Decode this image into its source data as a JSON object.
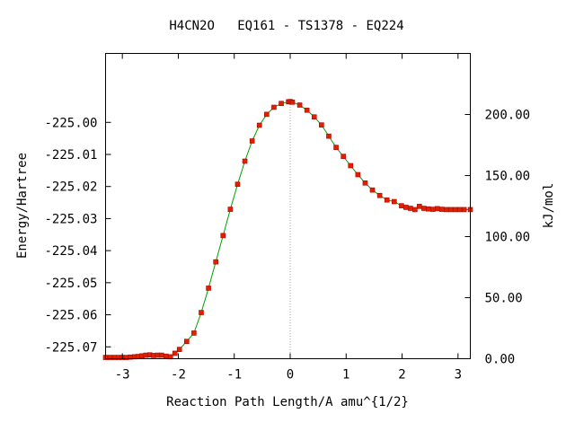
{
  "chart_data": {
    "type": "line",
    "title": "H4CN2O   EQ161 - TS1378 - EQ224",
    "xlabel": "Reaction Path Length/A amu^{1/2}",
    "ylabel": "Energy/Hartree",
    "y2label": "kJ/mol",
    "xlim": [
      -3.3,
      3.22
    ],
    "ylim": [
      -225.0737,
      -224.9785
    ],
    "y2lim": [
      0,
      250
    ],
    "xticks": [
      -3,
      -2,
      -1,
      0,
      1,
      2,
      3
    ],
    "xtick_labels": [
      "-3",
      "-2",
      "-1",
      "0",
      "1",
      "2",
      "3"
    ],
    "yticks": [
      -225.0,
      -225.01,
      -225.02,
      -225.03,
      -225.04,
      -225.05,
      -225.06,
      -225.07
    ],
    "ytick_labels": [
      "-225.00",
      "-225.01",
      "-225.02",
      "-225.03",
      "-225.04",
      "-225.05",
      "-225.06",
      "-225.07"
    ],
    "y2ticks": [
      200,
      150,
      100,
      50,
      0
    ],
    "y2tick_labels": [
      "200.00",
      "150.00",
      "100.00",
      "50.00",
      "0.00"
    ],
    "ts_marker_x": 0,
    "grid": false,
    "legend": "none",
    "colors": {
      "line": "#00a000",
      "marker_fill": "#dd2200",
      "marker_edge": "#b00000",
      "ts_line": "#a0a0a0",
      "frame": "#000000"
    },
    "series": [
      {
        "x": [
          -3.3,
          -3.22,
          -3.14,
          -3.07,
          -3.0,
          -2.93,
          -2.86,
          -2.78,
          -2.72,
          -2.65,
          -2.58,
          -2.51,
          -2.44,
          -2.37,
          -2.3,
          -2.22,
          -2.14,
          -2.06,
          -1.98,
          -1.85,
          -1.72,
          -1.59,
          -1.46,
          -1.33,
          -1.2,
          -1.07,
          -0.94,
          -0.81,
          -0.68,
          -0.55,
          -0.42,
          -0.29,
          -0.16,
          -0.03,
          0.0,
          0.04,
          0.17,
          0.3,
          0.43,
          0.56,
          0.69,
          0.82,
          0.95,
          1.08,
          1.21,
          1.34,
          1.47,
          1.6,
          1.73,
          1.86,
          1.99,
          2.07,
          2.15,
          2.23,
          2.31,
          2.39,
          2.47,
          2.55,
          2.63,
          2.71,
          2.79,
          2.87,
          2.95,
          3.03,
          3.11,
          3.22
        ],
        "y": [
          -225.0733,
          -225.0733,
          -225.0733,
          -225.0733,
          -225.0733,
          -225.0733,
          -225.0732,
          -225.0731,
          -225.073,
          -225.0728,
          -225.0726,
          -225.0725,
          -225.0727,
          -225.0726,
          -225.0726,
          -225.0729,
          -225.0731,
          -225.072,
          -225.0708,
          -225.0683,
          -225.0657,
          -225.0593,
          -225.0517,
          -225.0435,
          -225.0353,
          -225.0271,
          -225.0193,
          -225.0121,
          -225.0058,
          -225.0009,
          -224.9975,
          -224.9953,
          -224.9941,
          -224.9936,
          -224.9935,
          -224.9937,
          -224.9946,
          -224.9962,
          -224.9983,
          -225.0008,
          -225.0043,
          -225.0078,
          -225.0106,
          -225.0135,
          -225.0163,
          -225.0189,
          -225.0211,
          -225.0228,
          -225.0242,
          -225.0247,
          -225.026,
          -225.0265,
          -225.0268,
          -225.0272,
          -225.0262,
          -225.0268,
          -225.027,
          -225.0271,
          -225.0269,
          -225.0271,
          -225.0272,
          -225.0272,
          -225.0272,
          -225.0272,
          -225.0272,
          -225.0272
        ]
      }
    ]
  }
}
